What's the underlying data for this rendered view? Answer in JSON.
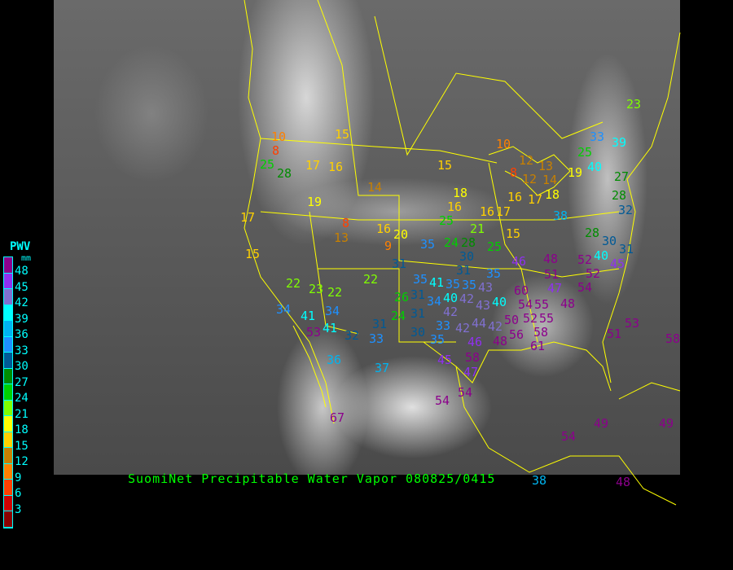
{
  "title": "SuomiNet Precipitable Water Vapor 080825/0415",
  "legend": {
    "title": "PWV",
    "unit": "mm",
    "labels": [
      "48",
      "45",
      "42",
      "39",
      "36",
      "33",
      "30",
      "27",
      "24",
      "21",
      "18",
      "15",
      "12",
      "9",
      "6",
      "3"
    ],
    "colors": [
      "#8c008c",
      "#9030f0",
      "#8070d0",
      "#00ffff",
      "#00b4f0",
      "#1e90ff",
      "#005a96",
      "#008c00",
      "#00d000",
      "#80ff00",
      "#ffff00",
      "#ffd000",
      "#c88000",
      "#ff8000",
      "#ff4000",
      "#d00000",
      "#8b0000"
    ]
  },
  "stations": [
    8,
    10,
    25,
    28,
    15,
    17,
    16,
    19,
    17,
    15,
    14,
    15,
    18,
    16,
    25,
    8,
    13,
    16,
    20,
    9,
    31,
    35,
    24,
    21,
    25,
    28,
    30,
    31,
    15,
    16,
    17,
    16,
    17,
    18,
    10,
    8,
    12,
    13,
    12,
    14,
    19,
    33,
    39,
    25,
    40,
    27,
    28,
    32,
    38,
    28,
    30,
    31,
    40,
    45,
    52,
    52,
    48,
    46,
    51,
    47,
    54,
    48,
    35,
    35,
    41,
    35,
    43,
    42,
    40,
    43,
    40,
    42,
    34,
    35,
    26,
    31,
    24,
    31,
    33,
    30,
    35,
    44,
    42,
    46,
    48,
    42,
    50,
    60,
    54,
    55,
    55,
    58,
    56,
    61,
    52,
    51,
    53,
    58,
    45,
    58,
    47,
    54,
    54,
    67,
    54,
    49,
    49,
    38,
    48,
    37,
    36,
    32,
    31,
    33,
    22,
    23,
    22,
    22,
    34,
    41,
    34,
    53,
    41,
    23
  ]
}
